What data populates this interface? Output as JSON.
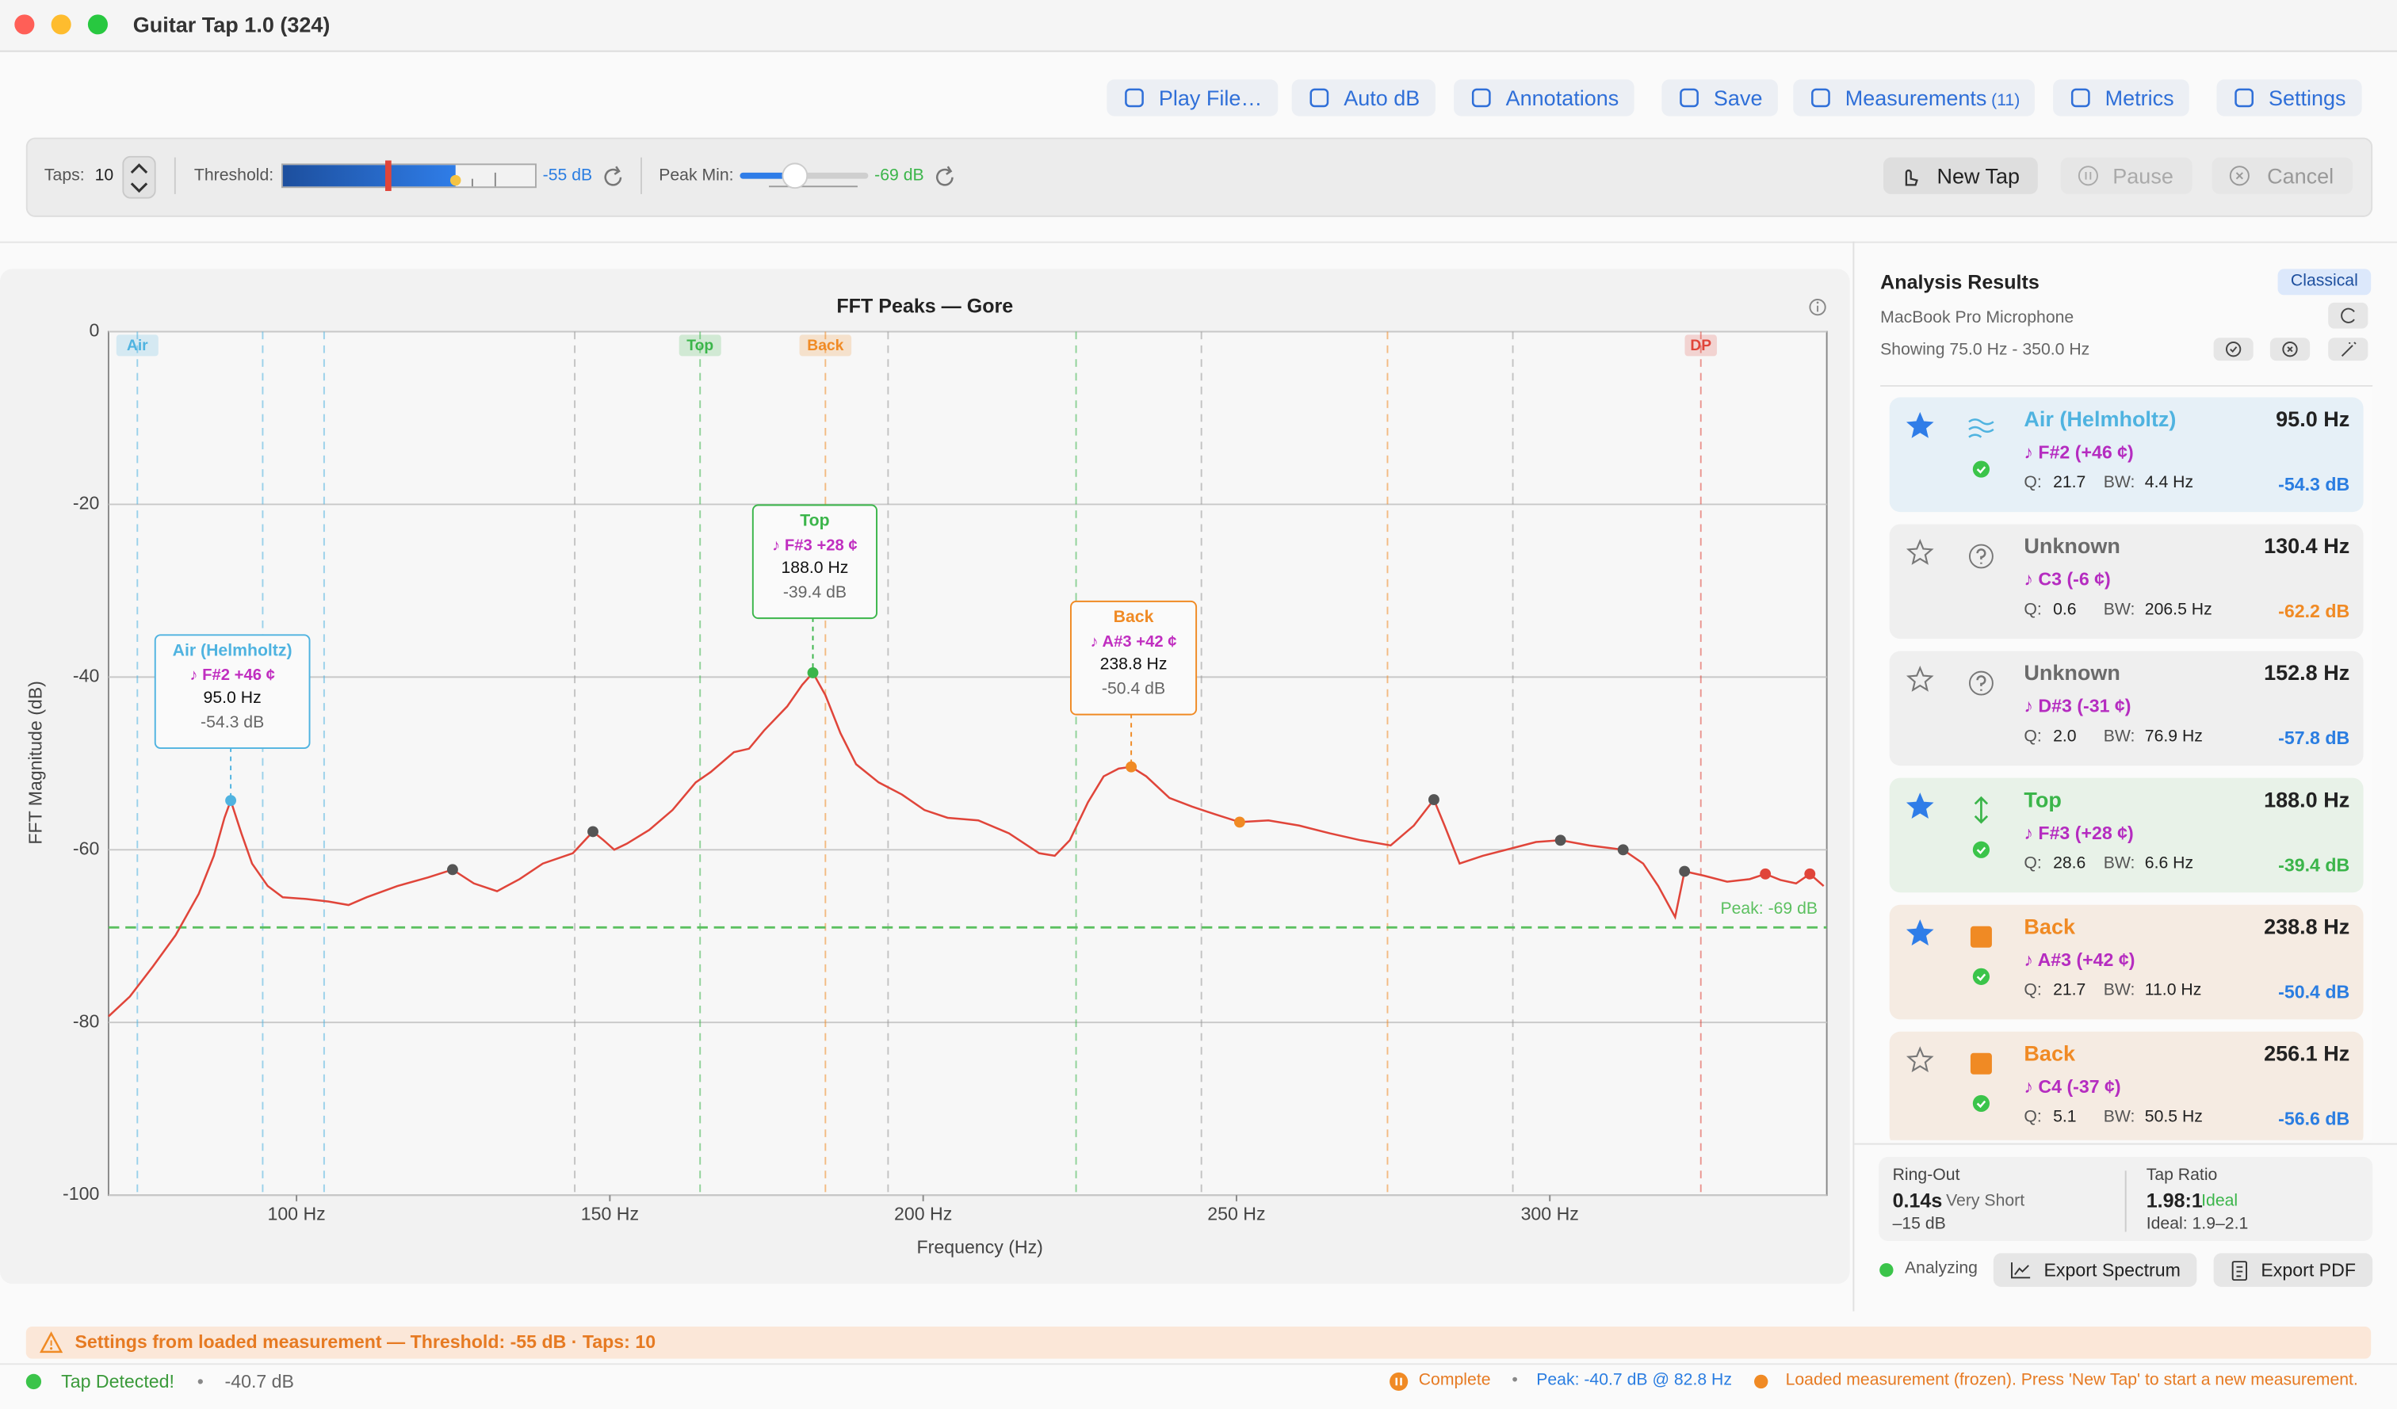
{
  "window": {
    "title": "Guitar Tap 1.0 (324)"
  },
  "toolbar": {
    "buttons": [
      "Play File…",
      "Auto dB",
      "Annotations",
      "Save",
      "Measurements",
      "Metrics",
      "Settings"
    ],
    "measurements_count": "(11)"
  },
  "controls": {
    "taps_label": "Taps:",
    "taps": "10",
    "threshold_label": "Threshold:",
    "threshold": "-55 dB",
    "peak_min_label": "Peak Min:",
    "peak_min": "-69 dB",
    "new_tap": "New Tap",
    "pause": "Pause",
    "cancel": "Cancel"
  },
  "chart_data": {
    "type": "line",
    "title": "FFT Peaks — Gore",
    "x_label": "Frequency (Hz)",
    "y_label": "FFT Magnitude (dB)",
    "xlim": [
      70,
      344.2
    ],
    "ylim": [
      -100,
      0
    ],
    "xticks": [
      {
        "value": 100,
        "label": "100 Hz"
      },
      {
        "value": 150,
        "label": "150 Hz"
      },
      {
        "value": 200,
        "label": "200 Hz"
      },
      {
        "value": 250,
        "label": "250 Hz"
      },
      {
        "value": 300,
        "label": "300 Hz"
      }
    ],
    "yticks": [
      0,
      -20,
      -40,
      -60,
      -80,
      -100
    ],
    "grid": true,
    "color": "#e0453a",
    "x": [
      70,
      73.4,
      77.1,
      80.7,
      84.4,
      86.8,
      88.5,
      89.5,
      91.2,
      92.9,
      95.4,
      97.8,
      101.5,
      105.1,
      108.3,
      111.2,
      116.1,
      121.0,
      124.9,
      128.3,
      132.0,
      135.6,
      139.3,
      144.1,
      147.3,
      149.0,
      150.7,
      152.7,
      156.3,
      160.0,
      163.7,
      166.1,
      169.8,
      172.2,
      174.6,
      178.3,
      180.7,
      182.4,
      184.4,
      186.8,
      189.3,
      192.9,
      196.6,
      200.2,
      203.9,
      208.8,
      213.7,
      218.5,
      221.0,
      223.4,
      226.3,
      228.8,
      231.2,
      233.2,
      235.6,
      239.3,
      242.9,
      246.6,
      250.5,
      255.1,
      260.0,
      264.9,
      269.8,
      274.6,
      278.3,
      281.5,
      283.2,
      285.6,
      289.3,
      294.1,
      297.8,
      301.7,
      306.3,
      311.7,
      314.9,
      317.3,
      320.0,
      321.5,
      324.6,
      328.3,
      331.9,
      334.4,
      336.8,
      339.3,
      341.5,
      343.7
    ],
    "values": [
      -79.3,
      -77.0,
      -73.5,
      -69.9,
      -65.1,
      -60.7,
      -56.3,
      -54.3,
      -58.1,
      -61.6,
      -64.2,
      -65.5,
      -65.7,
      -66.0,
      -66.4,
      -65.5,
      -64.2,
      -63.2,
      -62.3,
      -63.9,
      -64.8,
      -63.4,
      -61.6,
      -60.4,
      -57.9,
      -58.9,
      -60.0,
      -59.3,
      -57.7,
      -55.4,
      -52.2,
      -51.0,
      -48.7,
      -48.3,
      -46.2,
      -43.4,
      -40.9,
      -39.5,
      -42.1,
      -46.5,
      -50.1,
      -52.2,
      -53.6,
      -55.4,
      -56.3,
      -56.6,
      -58.1,
      -60.4,
      -60.7,
      -58.9,
      -54.5,
      -51.5,
      -50.6,
      -50.4,
      -51.5,
      -54.0,
      -55.0,
      -55.9,
      -56.8,
      -56.6,
      -57.2,
      -58.1,
      -58.9,
      -59.5,
      -57.2,
      -54.2,
      -57.2,
      -61.6,
      -60.7,
      -59.8,
      -59.1,
      -58.9,
      -59.5,
      -60.0,
      -61.6,
      -64.2,
      -67.8,
      -62.5,
      -63.0,
      -63.7,
      -63.4,
      -62.8,
      -63.5,
      -63.9,
      -62.8,
      -64.2
    ],
    "peaks": [
      {
        "x": 89.5,
        "value": -54.3,
        "color": "#4fb3e0"
      },
      {
        "x": 124.9,
        "value": -62.3,
        "color": "#555555"
      },
      {
        "x": 147.3,
        "value": -57.9,
        "color": "#555555"
      },
      {
        "x": 182.4,
        "value": -39.5,
        "color": "#3bb54a"
      },
      {
        "x": 233.2,
        "value": -50.4,
        "color": "#f08a24"
      },
      {
        "x": 250.5,
        "value": -56.8,
        "color": "#f08a24"
      },
      {
        "x": 281.5,
        "value": -54.2,
        "color": "#555555"
      },
      {
        "x": 301.7,
        "value": -58.9,
        "color": "#555555"
      },
      {
        "x": 311.7,
        "value": -60.0,
        "color": "#555555"
      },
      {
        "x": 321.5,
        "value": -62.5,
        "color": "#555555"
      },
      {
        "x": 334.4,
        "value": -62.8,
        "color": "#e0453a"
      },
      {
        "x": 341.5,
        "value": -62.8,
        "color": "#e0453a"
      }
    ],
    "range_lines": [
      {
        "x": 74.6,
        "color": "#4fb3e0",
        "label": "Air"
      },
      {
        "x": 94.6,
        "color": "#4fb3e0"
      },
      {
        "x": 104.4,
        "color": "#4fb3e0"
      },
      {
        "x": 144.4,
        "color": "#999999"
      },
      {
        "x": 164.4,
        "color": "#3bb54a",
        "label": "Top"
      },
      {
        "x": 184.4,
        "color": "#f08a24",
        "label": "Back"
      },
      {
        "x": 194.4,
        "color": "#999999"
      },
      {
        "x": 224.4,
        "color": "#3bb54a"
      },
      {
        "x": 244.4,
        "color": "#999999"
      },
      {
        "x": 274.1,
        "color": "#f08a24"
      },
      {
        "x": 294.1,
        "color": "#999999"
      },
      {
        "x": 324.1,
        "color": "#e0453a",
        "label": "DP"
      }
    ],
    "threshold": {
      "value": -69,
      "label": "Peak: -69 dB",
      "color": "#5cc060"
    },
    "callouts": [
      {
        "title": "Air (Helmholtz)",
        "note": "♪ F#2 +46 ¢",
        "freq": "95.0 Hz",
        "db": "-54.3 dB",
        "color": "#4fb3e0"
      },
      {
        "title": "Top",
        "note": "♪ F#3 +28 ¢",
        "freq": "188.0 Hz",
        "db": "-39.4 dB",
        "color": "#3bb54a"
      },
      {
        "title": "Back",
        "note": "♪ A#3 +42 ¢",
        "freq": "238.8 Hz",
        "db": "-50.4 dB",
        "color": "#f08a24"
      }
    ]
  },
  "results": {
    "title": "Analysis Results",
    "preset": "Classical",
    "device": "MacBook Pro Microphone",
    "range": "Showing 75.0 Hz - 350.0 Hz",
    "q_label": "Q:",
    "bw_label": "BW:",
    "items": [
      {
        "name": "Air (Helmholtz)",
        "note": "♪ F#2 (+46 ¢)",
        "freq": "95.0 Hz",
        "q": "21.7",
        "bw": "4.4 Hz",
        "db": "-54.3 dB",
        "starred": true,
        "kind": "air",
        "name_color": "#4fb3e0",
        "db_color": "#2a7de1",
        "bg": "#e6f0f7"
      },
      {
        "name": "Unknown",
        "note": "♪ C3 (-6 ¢)",
        "freq": "130.4 Hz",
        "q": "0.6",
        "bw": "206.5 Hz",
        "db": "-62.2 dB",
        "starred": false,
        "kind": "unknown",
        "name_color": "#6b6b6b",
        "db_color": "#f08a24",
        "bg": "#efefef"
      },
      {
        "name": "Unknown",
        "note": "♪ D#3 (-31 ¢)",
        "freq": "152.8 Hz",
        "q": "2.0",
        "bw": "76.9 Hz",
        "db": "-57.8 dB",
        "starred": false,
        "kind": "unknown",
        "name_color": "#6b6b6b",
        "db_color": "#2a7de1",
        "bg": "#efefef"
      },
      {
        "name": "Top",
        "note": "♪ F#3 (+28 ¢)",
        "freq": "188.0 Hz",
        "q": "28.6",
        "bw": "6.6 Hz",
        "db": "-39.4 dB",
        "starred": true,
        "kind": "top",
        "name_color": "#3bb54a",
        "db_color": "#3bb54a",
        "bg": "#e8f2e8"
      },
      {
        "name": "Back",
        "note": "♪ A#3 (+42 ¢)",
        "freq": "238.8 Hz",
        "q": "21.7",
        "bw": "11.0 Hz",
        "db": "-50.4 dB",
        "starred": true,
        "kind": "back",
        "name_color": "#f08a24",
        "db_color": "#2a7de1",
        "bg": "#f5ebe2"
      },
      {
        "name": "Back",
        "note": "♪ C4 (-37 ¢)",
        "freq": "256.1 Hz",
        "q": "5.1",
        "bw": "50.5 Hz",
        "db": "-56.6 dB",
        "starred": false,
        "kind": "back",
        "name_color": "#f08a24",
        "db_color": "#2a7de1",
        "bg": "#f5ebe2"
      }
    ]
  },
  "metrics": {
    "ringout_label": "Ring-Out",
    "ringout": "0.14s",
    "ringout_desc": "Very Short",
    "ringout_db": "–15 dB",
    "ratio_label": "Tap Ratio",
    "ratio": "1.98:1",
    "ratio_desc": "Ideal",
    "ratio_range": "Ideal: 1.9–2.1"
  },
  "actions": {
    "status": "Analyzing",
    "export_spectrum": "Export Spectrum",
    "export_pdf": "Export PDF"
  },
  "banner": "Settings from loaded measurement — Threshold: -55 dB · Taps: 10",
  "status": {
    "tap": "Tap Detected!",
    "sep": "•",
    "level": "-40.7 dB",
    "complete": "Complete",
    "peak": "Peak: -40.7 dB @ 82.8 Hz",
    "message": "Loaded measurement (frozen). Press 'New Tap' to start a new measurement."
  }
}
